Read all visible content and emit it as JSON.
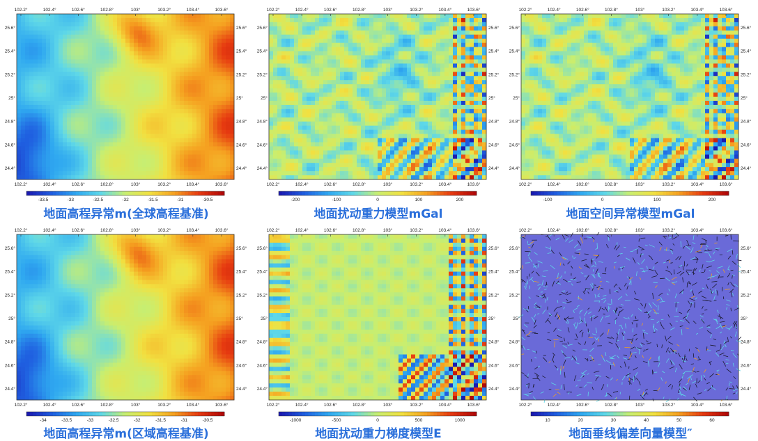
{
  "panels": [
    {
      "id": "p1",
      "caption": "地面高程异常m(全球高程基准)",
      "pattern": "smooth",
      "x_ticks": [
        "102.2°",
        "102.4°",
        "102.6°",
        "102.8°",
        "103°",
        "103.2°",
        "103.4°",
        "103.6°"
      ],
      "y_ticks": [
        "25.6°",
        "25.4°",
        "25.2°",
        "25°",
        "24.8°",
        "24.6°",
        "24.4°"
      ],
      "colorbar_ticks": [
        "-33.5",
        "-33",
        "-32.5",
        "-32",
        "-31.5",
        "-31",
        "-30.5"
      ]
    },
    {
      "id": "p2",
      "caption": "地面扰动重力模型mGal",
      "pattern": "noisy",
      "x_ticks": [
        "102.2°",
        "102.4°",
        "102.6°",
        "102.8°",
        "103°",
        "103.2°",
        "103.4°",
        "103.6°"
      ],
      "y_ticks": [
        "25.6°",
        "25.4°",
        "25.2°",
        "25°",
        "24.8°",
        "24.6°",
        "24.4°"
      ],
      "colorbar_ticks": [
        "-200",
        "-100",
        "0",
        "100",
        "200"
      ]
    },
    {
      "id": "p3",
      "caption": "地面空间异常模型mGal",
      "pattern": "noisy",
      "x_ticks": [
        "102.2°",
        "102.4°",
        "102.6°",
        "102.8°",
        "103°",
        "103.2°",
        "103.4°",
        "103.6°"
      ],
      "y_ticks": [
        "25.6°",
        "25.4°",
        "25.2°",
        "25°",
        "24.8°",
        "24.6°",
        "24.4°"
      ],
      "colorbar_ticks": [
        "-100",
        "0",
        "100",
        "200"
      ]
    },
    {
      "id": "p4",
      "caption": "地面高程异常m(区域高程基准)",
      "pattern": "smooth",
      "x_ticks": [
        "102.2°",
        "102.4°",
        "102.6°",
        "102.8°",
        "103°",
        "103.2°",
        "103.4°",
        "103.6°"
      ],
      "y_ticks": [
        "25.6°",
        "25.4°",
        "25.2°",
        "25°",
        "24.8°",
        "24.6°",
        "24.4°"
      ],
      "colorbar_ticks": [
        "-34",
        "-33.5",
        "-33",
        "-32.5",
        "-32",
        "-31.5",
        "-31",
        "-30.5"
      ]
    },
    {
      "id": "p5",
      "caption": "地面扰动重力梯度模型E",
      "pattern": "gradient",
      "x_ticks": [
        "102.2°",
        "102.4°",
        "102.6°",
        "102.8°",
        "103°",
        "103.2°",
        "103.4°",
        "103.6°"
      ],
      "y_ticks": [
        "25.6°",
        "25.4°",
        "25.2°",
        "25°",
        "24.8°",
        "24.6°",
        "24.4°"
      ],
      "colorbar_ticks": [
        "-1000",
        "-500",
        "0",
        "500",
        "1000"
      ]
    },
    {
      "id": "p6",
      "caption": "地面垂线偏差向量模型″",
      "pattern": "vector",
      "x_ticks": [
        "102.2°",
        "102.4°",
        "102.6°",
        "102.8°",
        "103°",
        "103.2°",
        "103.4°",
        "103.6°"
      ],
      "y_ticks": [
        "25.6°",
        "25.4°",
        "25.2°",
        "25°",
        "24.8°",
        "24.6°",
        "24.4°"
      ],
      "colorbar_ticks": [
        "10",
        "20",
        "30",
        "40",
        "50",
        "60"
      ]
    }
  ],
  "colors": {
    "caption": "#2a6fdb",
    "ramp": [
      "#1a1ab0",
      "#1f5fe0",
      "#2fa8f0",
      "#5fd8e8",
      "#c8ee70",
      "#f2e040",
      "#f5a020",
      "#e63a10",
      "#b00808"
    ],
    "vector_bg": "#6a6ad8"
  }
}
